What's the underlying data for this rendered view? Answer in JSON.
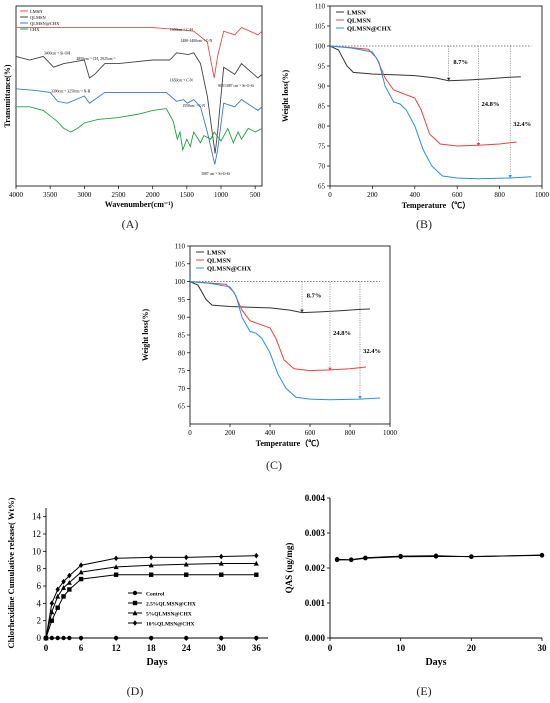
{
  "chart_data": [
    {
      "panel": "A",
      "type": "line",
      "xlabel": "Wavenumber(cm⁻¹)",
      "ylabel": "Transmittance(%)",
      "xlim": [
        4000,
        400
      ],
      "xticks": [
        "4000",
        "3500",
        "3000",
        "2500",
        "2000",
        "1500",
        "1000",
        "500"
      ],
      "legend": "top-left",
      "series": [
        {
          "name": "LMSN",
          "color": "#e05050",
          "points": [
            [
              4000,
              88
            ],
            [
              3600,
              88
            ],
            [
              3200,
              88
            ],
            [
              2900,
              88
            ],
            [
              2500,
              88
            ],
            [
              2000,
              88
            ],
            [
              1650,
              87
            ],
            [
              1400,
              86
            ],
            [
              1200,
              80
            ],
            [
              1100,
              60
            ],
            [
              1050,
              72
            ],
            [
              960,
              86
            ],
            [
              800,
              84
            ],
            [
              700,
              88
            ],
            [
              460,
              84
            ],
            [
              400,
              86
            ]
          ]
        },
        {
          "name": "QLMSN",
          "color": "#444444",
          "points": [
            [
              4000,
              72
            ],
            [
              3800,
              70
            ],
            [
              3600,
              72
            ],
            [
              3450,
              66
            ],
            [
              3300,
              68
            ],
            [
              3000,
              70
            ],
            [
              2925,
              60
            ],
            [
              2850,
              62
            ],
            [
              2700,
              68
            ],
            [
              2500,
              68
            ],
            [
              2000,
              70
            ],
            [
              1750,
              70
            ],
            [
              1650,
              74
            ],
            [
              1480,
              73
            ],
            [
              1400,
              74
            ],
            [
              1300,
              68
            ],
            [
              1200,
              50
            ],
            [
              1087,
              18
            ],
            [
              1050,
              30
            ],
            [
              960,
              66
            ],
            [
              800,
              62
            ],
            [
              700,
              68
            ],
            [
              460,
              60
            ],
            [
              400,
              62
            ]
          ]
        },
        {
          "name": "QLMSN@CHX",
          "color": "#3a78c8",
          "points": [
            [
              4000,
              54
            ],
            [
              3700,
              53
            ],
            [
              3500,
              52
            ],
            [
              3390,
              47
            ],
            [
              3250,
              46
            ],
            [
              3000,
              50
            ],
            [
              2925,
              46
            ],
            [
              2850,
              48
            ],
            [
              2700,
              52
            ],
            [
              2000,
              52
            ],
            [
              1800,
              52
            ],
            [
              1650,
              47
            ],
            [
              1550,
              48
            ],
            [
              1490,
              46
            ],
            [
              1400,
              48
            ],
            [
              1300,
              44
            ],
            [
              1200,
              30
            ],
            [
              1090,
              12
            ],
            [
              1050,
              20
            ],
            [
              960,
              46
            ],
            [
              800,
              44
            ],
            [
              700,
              48
            ],
            [
              460,
              42
            ],
            [
              400,
              44
            ]
          ]
        },
        {
          "name": "CHX",
          "color": "#20a040",
          "points": [
            [
              4000,
              44
            ],
            [
              3800,
              44
            ],
            [
              3600,
              42
            ],
            [
              3400,
              36
            ],
            [
              3300,
              32
            ],
            [
              3200,
              30
            ],
            [
              3100,
              32
            ],
            [
              3000,
              35
            ],
            [
              2800,
              37
            ],
            [
              2500,
              38
            ],
            [
              2200,
              40
            ],
            [
              2000,
              42
            ],
            [
              1800,
              43
            ],
            [
              1700,
              36
            ],
            [
              1640,
              26
            ],
            [
              1600,
              30
            ],
            [
              1560,
              20
            ],
            [
              1500,
              26
            ],
            [
              1450,
              22
            ],
            [
              1400,
              30
            ],
            [
              1300,
              24
            ],
            [
              1250,
              28
            ],
            [
              1150,
              26
            ],
            [
              1100,
              30
            ],
            [
              1000,
              25
            ],
            [
              900,
              32
            ],
            [
              820,
              24
            ],
            [
              750,
              30
            ],
            [
              700,
              26
            ],
            [
              600,
              32
            ],
            [
              500,
              30
            ],
            [
              400,
              32
            ]
          ]
        }
      ],
      "annotations": [
        "3400cm⁻¹ Si-OH",
        "2850cm⁻¹ CH₂ 2925cm⁻¹",
        "1650cm⁻¹ C-H",
        "1480-1400cm⁻¹ C-N",
        "3390cm⁻¹ 3250cm⁻¹ N-H",
        "1650cm⁻¹ C-N",
        "1550cm⁻¹ C-N",
        "805/1087 cm⁻¹ Si-O-Si",
        "1087 cm⁻¹ Si-O-Si"
      ]
    },
    {
      "panel": "B",
      "type": "line",
      "xlabel": "Temperature（℃）",
      "ylabel": "Weight loss(%)",
      "xlim": [
        0,
        1000
      ],
      "ylim": [
        65,
        110
      ],
      "xticks": [
        0,
        200,
        400,
        600,
        800,
        1000
      ],
      "yticks": [
        65,
        70,
        75,
        80,
        85,
        90,
        95,
        100,
        105,
        110
      ],
      "legend": "top-left",
      "reference_line": 100,
      "series": [
        {
          "name": "LMSN",
          "color": "#333333",
          "points": [
            [
              0,
              100
            ],
            [
              40,
              99
            ],
            [
              80,
              95
            ],
            [
              110,
              93.4
            ],
            [
              200,
              93
            ],
            [
              300,
              92.8
            ],
            [
              400,
              92.6
            ],
            [
              500,
              92
            ],
            [
              560,
              91.3
            ],
            [
              650,
              91.5
            ],
            [
              750,
              91.8
            ],
            [
              850,
              92.2
            ],
            [
              900,
              92.3
            ]
          ]
        },
        {
          "name": "QLMSN",
          "color": "#f04040",
          "points": [
            [
              0,
              100
            ],
            [
              100,
              99.6
            ],
            [
              180,
              99.2
            ],
            [
              220,
              97
            ],
            [
              260,
              92
            ],
            [
              300,
              89
            ],
            [
              350,
              88
            ],
            [
              400,
              87
            ],
            [
              430,
              84
            ],
            [
              470,
              78
            ],
            [
              520,
              75.5
            ],
            [
              600,
              75
            ],
            [
              700,
              75.2
            ],
            [
              800,
              75.5
            ],
            [
              880,
              76
            ]
          ]
        },
        {
          "name": "QLMSN@CHX",
          "color": "#2a90e0",
          "points": [
            [
              0,
              100
            ],
            [
              100,
              99.5
            ],
            [
              200,
              98.5
            ],
            [
              230,
              96
            ],
            [
              260,
              90
            ],
            [
              300,
              86
            ],
            [
              330,
              85.5
            ],
            [
              360,
              84
            ],
            [
              400,
              80
            ],
            [
              440,
              74
            ],
            [
              480,
              70
            ],
            [
              530,
              67.5
            ],
            [
              600,
              67
            ],
            [
              700,
              66.8
            ],
            [
              850,
              67
            ],
            [
              950,
              67.3
            ]
          ]
        }
      ],
      "annotations": [
        "8.7%",
        "24.8%",
        "32.4%"
      ]
    },
    {
      "panel": "C",
      "type": "line",
      "xlabel": "Temperature（℃）",
      "ylabel": "Weight loss(%)",
      "xlim": [
        0,
        1000
      ],
      "ylim": [
        60,
        110
      ],
      "xticks": [
        0,
        200,
        400,
        600,
        800,
        1000
      ],
      "yticks": [
        65,
        70,
        75,
        80,
        85,
        90,
        95,
        100,
        105,
        110
      ],
      "legend": "top-left",
      "reference_line": 100,
      "series": [
        {
          "name": "LMSN",
          "color": "#333333",
          "points": [
            [
              0,
              100
            ],
            [
              40,
              99
            ],
            [
              80,
              95
            ],
            [
              110,
              93.4
            ],
            [
              200,
              93
            ],
            [
              300,
              92.8
            ],
            [
              400,
              92.6
            ],
            [
              500,
              92
            ],
            [
              560,
              91.3
            ],
            [
              650,
              91.5
            ],
            [
              750,
              91.8
            ],
            [
              850,
              92.2
            ],
            [
              900,
              92.3
            ]
          ]
        },
        {
          "name": "QLMSN",
          "color": "#f04040",
          "points": [
            [
              0,
              100
            ],
            [
              100,
              99.6
            ],
            [
              180,
              99.2
            ],
            [
              220,
              97
            ],
            [
              260,
              92
            ],
            [
              300,
              89
            ],
            [
              350,
              88
            ],
            [
              400,
              87
            ],
            [
              430,
              84
            ],
            [
              470,
              78
            ],
            [
              520,
              75.5
            ],
            [
              600,
              75
            ],
            [
              700,
              75.2
            ],
            [
              800,
              75.5
            ],
            [
              880,
              76
            ]
          ]
        },
        {
          "name": "QLMSN@CHX",
          "color": "#2a90e0",
          "points": [
            [
              0,
              100
            ],
            [
              100,
              99.5
            ],
            [
              200,
              98.5
            ],
            [
              230,
              96
            ],
            [
              260,
              90
            ],
            [
              300,
              86
            ],
            [
              330,
              85.5
            ],
            [
              360,
              84
            ],
            [
              400,
              80
            ],
            [
              440,
              74
            ],
            [
              480,
              70
            ],
            [
              530,
              67.5
            ],
            [
              600,
              67
            ],
            [
              700,
              66.8
            ],
            [
              850,
              67
            ],
            [
              950,
              67.3
            ]
          ]
        }
      ],
      "annotations": [
        "8.7%",
        "24.8%",
        "32.4%"
      ]
    },
    {
      "panel": "D",
      "type": "line",
      "xlabel": "Days",
      "ylabel": "Chlorhexidine Cumulative release( Wt%)",
      "xlim": [
        0,
        38
      ],
      "ylim": [
        0,
        15
      ],
      "xticks": [
        0,
        6,
        12,
        18,
        24,
        30,
        36
      ],
      "yticks": [
        0,
        2,
        4,
        6,
        8,
        10,
        12,
        14
      ],
      "legend": "bottom-right",
      "x": [
        0,
        1,
        2,
        3,
        4,
        6,
        12,
        18,
        24,
        30,
        36
      ],
      "series": [
        {
          "name": "Control",
          "marker": "circle",
          "values": [
            0,
            0,
            0,
            0,
            0,
            0,
            0,
            0,
            0,
            0,
            0
          ]
        },
        {
          "name": "2.5%QLMSN@CHX",
          "marker": "square",
          "values": [
            0,
            2,
            3.5,
            4.8,
            5.6,
            6.8,
            7.3,
            7.3,
            7.3,
            7.3,
            7.3
          ]
        },
        {
          "name": "5%QLMSN@CHX",
          "marker": "triangle",
          "values": [
            0,
            3,
            4.8,
            5.8,
            6.4,
            7.6,
            8.2,
            8.4,
            8.5,
            8.6,
            8.6
          ]
        },
        {
          "name": "10%QLMSN@CHX",
          "marker": "diamond",
          "values": [
            0,
            4,
            5.6,
            6.5,
            7.2,
            8.4,
            9.2,
            9.3,
            9.3,
            9.4,
            9.5
          ]
        }
      ]
    },
    {
      "panel": "E",
      "type": "line",
      "xlabel": "Days",
      "ylabel": "QAS (ug/mg)",
      "xlim": [
        0,
        30
      ],
      "ylim": [
        0,
        0.004
      ],
      "xticks": [
        0,
        10,
        20,
        30
      ],
      "yticks": [
        "0.000",
        "0.001",
        "0.002",
        "0.003",
        "0.004"
      ],
      "x": [
        1,
        3,
        5,
        10,
        15,
        20,
        30
      ],
      "series": [
        {
          "name": "",
          "values": [
            0.00225,
            0.00223,
            0.00228,
            0.00232,
            0.00233,
            0.00233,
            0.00236
          ]
        },
        {
          "name": "",
          "values": [
            0.00223,
            0.00224,
            0.00229,
            0.00234,
            0.00235,
            0.00232,
            0.00237
          ]
        }
      ]
    }
  ],
  "panel_labels": [
    "(A)",
    "(B)",
    "(C)",
    "(D)",
    "(E)"
  ]
}
